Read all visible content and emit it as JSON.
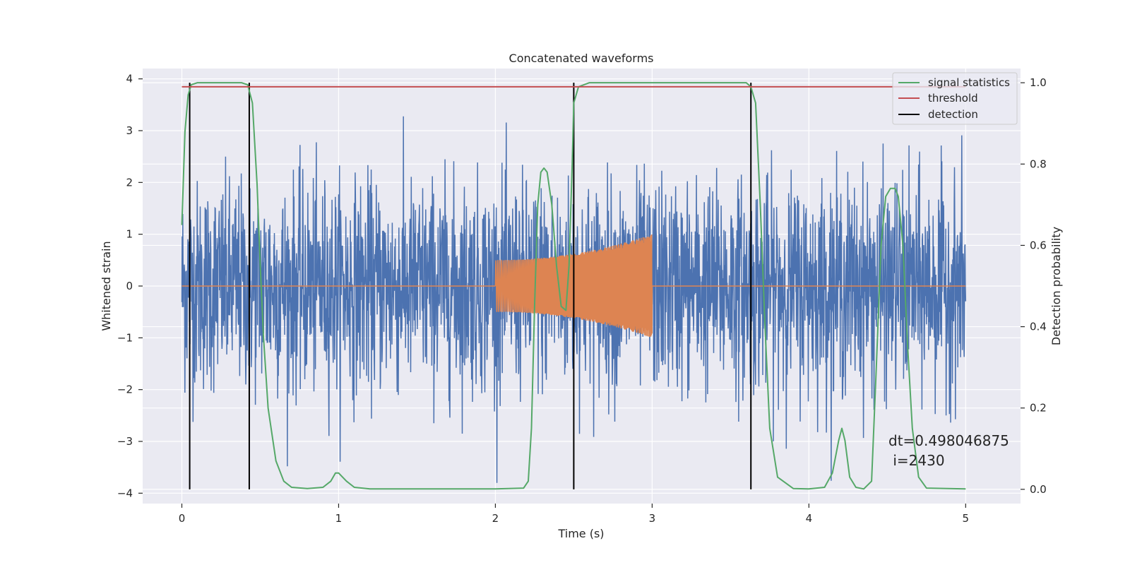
{
  "chart_data": {
    "type": "line",
    "title": "Concatenated waveforms",
    "xlabel": "Time (s)",
    "ylabel_left": "Whitened strain",
    "ylabel_right": "Detection probability",
    "xlim": [
      -0.25,
      5.35
    ],
    "ylim_left": [
      -4.2,
      4.2
    ],
    "ylim_right": [
      -0.035,
      1.035
    ],
    "x_ticks": [
      0,
      1,
      2,
      3,
      4,
      5
    ],
    "y_ticks_left": [
      -4,
      -3,
      -2,
      -1,
      0,
      1,
      2,
      3,
      4
    ],
    "y_ticks_right": [
      0.0,
      0.2,
      0.4,
      0.6,
      0.8,
      1.0
    ],
    "grid": true,
    "legend_position": "upper right",
    "legend": [
      "signal statistics",
      "threshold",
      "detection"
    ],
    "colors": {
      "strain": "#4c72b0",
      "injected_signal": "#dd8452",
      "signal_statistics": "#55a868",
      "threshold": "#c44e52",
      "detection": "#000000",
      "background": "#eaeaf2",
      "grid": "#ffffff"
    },
    "series": [
      {
        "name": "signal statistics",
        "axis": "right",
        "x": [
          0.0,
          0.02,
          0.04,
          0.06,
          0.1,
          0.2,
          0.3,
          0.38,
          0.42,
          0.45,
          0.48,
          0.5,
          0.52,
          0.55,
          0.6,
          0.65,
          0.7,
          0.8,
          0.9,
          0.95,
          0.98,
          1.0,
          1.05,
          1.1,
          1.2,
          1.5,
          2.0,
          2.18,
          2.21,
          2.23,
          2.25,
          2.27,
          2.29,
          2.31,
          2.33,
          2.36,
          2.39,
          2.42,
          2.45,
          2.47,
          2.49,
          2.5,
          2.53,
          2.6,
          3.0,
          3.5,
          3.6,
          3.63,
          3.66,
          3.69,
          3.72,
          3.75,
          3.8,
          3.9,
          4.0,
          4.1,
          4.15,
          4.19,
          4.21,
          4.23,
          4.26,
          4.3,
          4.35,
          4.4,
          4.43,
          4.46,
          4.49,
          4.52,
          4.55,
          4.57,
          4.6,
          4.63,
          4.66,
          4.7,
          4.75,
          5.0
        ],
        "values": [
          0.65,
          0.88,
          0.97,
          0.995,
          1.0,
          1.0,
          1.0,
          1.0,
          0.995,
          0.95,
          0.75,
          0.55,
          0.38,
          0.2,
          0.07,
          0.02,
          0.005,
          0.002,
          0.005,
          0.02,
          0.04,
          0.04,
          0.02,
          0.005,
          0.001,
          0.001,
          0.001,
          0.003,
          0.02,
          0.15,
          0.45,
          0.7,
          0.78,
          0.79,
          0.78,
          0.7,
          0.55,
          0.45,
          0.44,
          0.55,
          0.8,
          0.95,
          0.99,
          1.0,
          1.0,
          1.0,
          1.0,
          0.99,
          0.95,
          0.7,
          0.4,
          0.15,
          0.03,
          0.002,
          0.001,
          0.005,
          0.04,
          0.12,
          0.15,
          0.12,
          0.03,
          0.005,
          0.001,
          0.02,
          0.3,
          0.6,
          0.72,
          0.74,
          0.74,
          0.72,
          0.6,
          0.35,
          0.15,
          0.03,
          0.003,
          0.001
        ]
      },
      {
        "name": "threshold",
        "axis": "right",
        "x": [
          0.0,
          5.0
        ],
        "values": [
          0.99,
          0.99
        ]
      }
    ],
    "strain_noise": {
      "axis": "left",
      "x_range": [
        0.0,
        5.0
      ],
      "typical_amplitude": 1.0,
      "min": -3.8,
      "max": 3.7
    },
    "injected_signal": {
      "axis": "left",
      "x_range": [
        2.0,
        3.0
      ],
      "amplitude_start": 0.5,
      "amplitude_end": 1.0,
      "zero_elsewhere": true
    },
    "detections": [
      0.05,
      0.43,
      2.5,
      3.63
    ],
    "annotation": {
      "line1": "dt=0.498046875",
      "line2": " i=2430"
    }
  }
}
